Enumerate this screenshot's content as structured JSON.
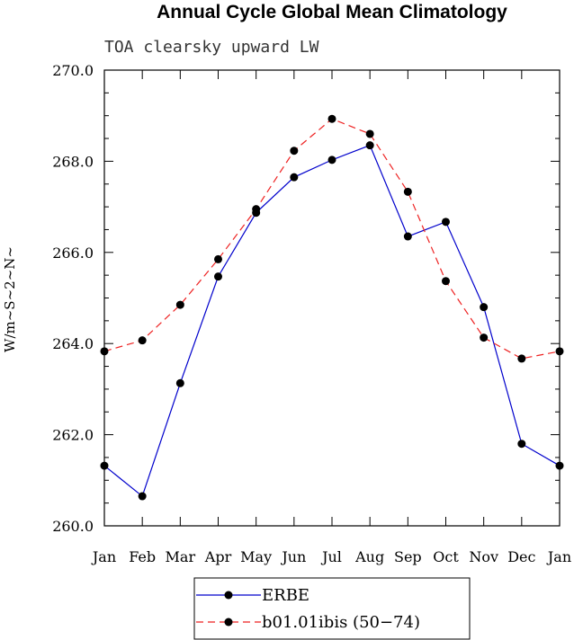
{
  "chart_data": {
    "type": "line",
    "title": "Annual Cycle Global Mean Climatology",
    "subtitle": "TOA clearsky upward LW",
    "xlabel": "",
    "ylabel": "W/m~S~2~N~",
    "ylim": [
      260.0,
      270.0
    ],
    "yticks": [
      "260.0",
      "262.0",
      "264.0",
      "266.0",
      "268.0",
      "270.0"
    ],
    "categories": [
      "Jan",
      "Feb",
      "Mar",
      "Apr",
      "May",
      "Jun",
      "Jul",
      "Aug",
      "Sep",
      "Oct",
      "Nov",
      "Dec",
      "Jan"
    ],
    "series": [
      {
        "name": "ERBE",
        "color": "#0000cc",
        "dash": "solid",
        "values": [
          261.32,
          260.65,
          263.13,
          265.47,
          266.87,
          267.65,
          268.03,
          268.35,
          266.35,
          266.67,
          264.8,
          261.8,
          261.32
        ]
      },
      {
        "name": "b01.01ibis (50-74)",
        "color": "#ee2222",
        "dash": "dashed",
        "values": [
          263.83,
          264.07,
          264.85,
          265.85,
          266.95,
          268.23,
          268.93,
          268.6,
          267.33,
          265.37,
          264.13,
          263.67,
          263.83
        ]
      }
    ],
    "legend": [
      "ERBE",
      "b01.01ibis (50−74)"
    ]
  }
}
